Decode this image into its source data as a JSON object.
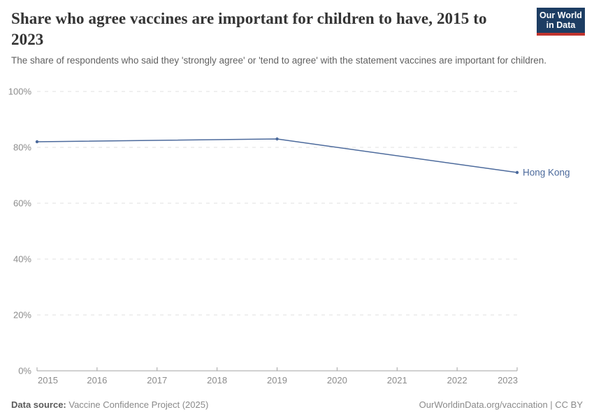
{
  "header": {
    "title": "Share who agree vaccines are important for children to have, 2015 to 2023",
    "subtitle": "The share of respondents who said they 'strongly agree' or 'tend to agree' with the statement vaccines are important for children.",
    "logo": {
      "line1": "Our World",
      "line2": "in Data",
      "bg_color": "#1d3d63",
      "accent_color": "#c0342e"
    }
  },
  "chart_data": {
    "type": "line",
    "title": "Share who agree vaccines are important for children to have, 2015 to 2023",
    "xlabel": "",
    "ylabel": "",
    "xlim": [
      2015,
      2023
    ],
    "ylim": [
      0,
      100
    ],
    "x_ticks": [
      2015,
      2016,
      2017,
      2018,
      2019,
      2020,
      2021,
      2022,
      2023
    ],
    "y_ticks": [
      0,
      20,
      40,
      60,
      80,
      100
    ],
    "y_tick_suffix": "%",
    "grid": "horizontal-dashed",
    "legend_position": "end-of-line-label",
    "series": [
      {
        "name": "Hong Kong",
        "color": "#4c6a9c",
        "x": [
          2015,
          2019,
          2023
        ],
        "y": [
          82,
          83,
          71
        ]
      }
    ]
  },
  "footer": {
    "source_label": "Data source:",
    "source_value": "Vaccine Confidence Project (2025)",
    "credit": "OurWorldinData.org/vaccination | CC BY"
  },
  "colors": {
    "grid": "#e0e0e0",
    "axis": "#a3a3a3",
    "tick_label": "#8c8c8c"
  }
}
